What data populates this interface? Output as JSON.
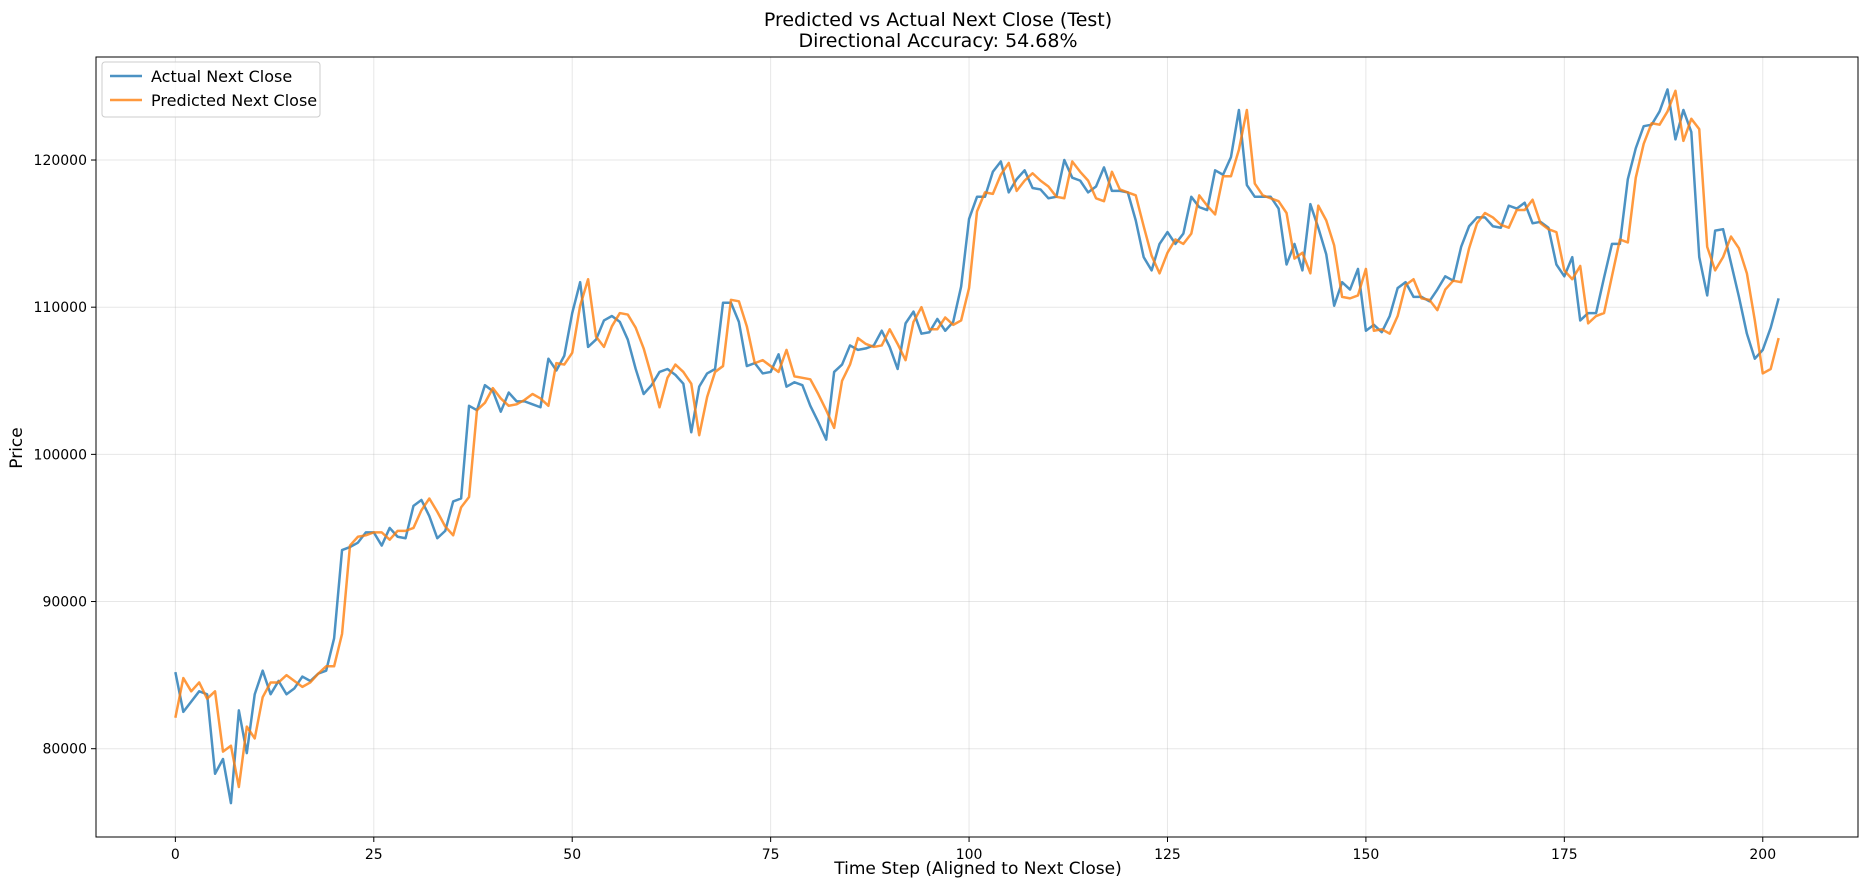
{
  "chart_data": {
    "type": "line",
    "title": "Predicted vs Actual Next Close (Test)",
    "subtitle": "Directional Accuracy: 54.68%",
    "xlabel": "Time Step (Aligned to Next Close)",
    "ylabel": "Price",
    "xlim": [
      -10,
      212
    ],
    "ylim": [
      74000,
      127000
    ],
    "xticks": [
      0,
      25,
      50,
      75,
      100,
      125,
      150,
      175,
      200
    ],
    "yticks": [
      80000,
      90000,
      100000,
      110000,
      120000
    ],
    "grid": true,
    "legend_position": "top-left",
    "series": [
      {
        "name": "Actual Next Close",
        "color": "#1f77b4",
        "values": [
          85200,
          82500,
          83200,
          83900,
          83700,
          78300,
          79300,
          76300,
          82600,
          79700,
          83700,
          85300,
          83700,
          84600,
          83700,
          84100,
          84900,
          84600,
          85100,
          85300,
          87500,
          93500,
          93700,
          94000,
          94700,
          94700,
          93800,
          95000,
          94400,
          94300,
          96500,
          96900,
          95800,
          94300,
          94800,
          96800,
          97000,
          103300,
          103000,
          104700,
          104300,
          102900,
          104200,
          103600,
          103600,
          103400,
          103200,
          106500,
          105700,
          106700,
          109600,
          111700,
          107300,
          107800,
          109100,
          109400,
          109000,
          107800,
          105800,
          104100,
          104700,
          105600,
          105800,
          105400,
          104800,
          101500,
          104600,
          105500,
          105800,
          110300,
          110300,
          109000,
          106000,
          106200,
          105500,
          105600,
          106800,
          104600,
          104900,
          104700,
          103300,
          102200,
          101000,
          105600,
          106100,
          107400,
          107100,
          107200,
          107400,
          108400,
          107300,
          105800,
          108900,
          109700,
          108200,
          108300,
          109200,
          108400,
          109000,
          111400,
          116000,
          117500,
          117500,
          119200,
          119900,
          117800,
          118700,
          119300,
          118100,
          118000,
          117400,
          117500,
          120000,
          118800,
          118600,
          117800,
          118200,
          119500,
          117900,
          117900,
          117800,
          115900,
          113400,
          112500,
          114300,
          115100,
          114300,
          115000,
          117500,
          116800,
          116600,
          119300,
          119000,
          120200,
          123400,
          118300,
          117500,
          117500,
          117500,
          116700,
          112900,
          114300,
          112500,
          117000,
          115400,
          113600,
          110100,
          111700,
          111200,
          112600,
          108400,
          108800,
          108300,
          109400,
          111300,
          111700,
          110700,
          110700,
          110400,
          111200,
          112100,
          111800,
          114100,
          115500,
          116100,
          116100,
          115500,
          115400,
          116900,
          116700,
          117100,
          115700,
          115800,
          115400,
          112900,
          112100,
          113400,
          109100,
          109600,
          109600,
          112000,
          114300,
          114300,
          118700,
          120800,
          122300,
          122400,
          123300,
          124800,
          121400,
          123400,
          121900,
          113400,
          110800,
          115200,
          115300,
          113000,
          110700,
          108200,
          106500,
          107100,
          108600,
          110600
        ]
      },
      {
        "name": "Predicted Next Close",
        "color": "#ff7f0e",
        "values": [
          82100,
          84800,
          83900,
          84500,
          83400,
          83900,
          79800,
          80200,
          77400,
          81500,
          80700,
          83500,
          84500,
          84500,
          85000,
          84600,
          84200,
          84500,
          85100,
          85600,
          85600,
          87800,
          93800,
          94400,
          94500,
          94700,
          94700,
          94200,
          94800,
          94800,
          95000,
          96200,
          97000,
          96100,
          95100,
          94500,
          96400,
          97100,
          103000,
          103500,
          104500,
          103800,
          103300,
          103400,
          103700,
          104100,
          103800,
          103300,
          106200,
          106100,
          106900,
          110100,
          111900,
          108000,
          107300,
          108700,
          109600,
          109500,
          108600,
          107200,
          105300,
          103200,
          105200,
          106100,
          105600,
          104800,
          101300,
          103900,
          105600,
          106000,
          110500,
          110400,
          108700,
          106200,
          106400,
          106000,
          105600,
          107100,
          105300,
          105200,
          105100,
          104100,
          103000,
          101800,
          105000,
          106100,
          107900,
          107500,
          107300,
          107400,
          108500,
          107500,
          106400,
          109000,
          110000,
          108500,
          108500,
          109300,
          108800,
          109100,
          111300,
          116500,
          117800,
          117700,
          119000,
          119800,
          117900,
          118600,
          119100,
          118600,
          118200,
          117500,
          117400,
          119900,
          119200,
          118600,
          117400,
          117200,
          119200,
          118000,
          117800,
          117600,
          115500,
          113500,
          112300,
          113700,
          114600,
          114300,
          115000,
          117600,
          116900,
          116300,
          118900,
          118900,
          120700,
          123400,
          118400,
          117600,
          117400,
          117200,
          116400,
          113300,
          113700,
          112300,
          116900,
          115900,
          114200,
          110700,
          110600,
          110800,
          112600,
          108400,
          108500,
          108200,
          109400,
          111500,
          111900,
          110600,
          110500,
          109800,
          111200,
          111800,
          111700,
          114000,
          115700,
          116400,
          116100,
          115600,
          115400,
          116600,
          116600,
          117300,
          115700,
          115300,
          115100,
          112500,
          111900,
          112800,
          108900,
          109400,
          109600,
          112100,
          114600,
          114400,
          118800,
          121100,
          122500,
          122400,
          123300,
          124700,
          121300,
          122800,
          122100,
          114100,
          112500,
          113400,
          114800,
          114000,
          112300,
          109100,
          105500,
          105800,
          107900
        ]
      }
    ]
  }
}
